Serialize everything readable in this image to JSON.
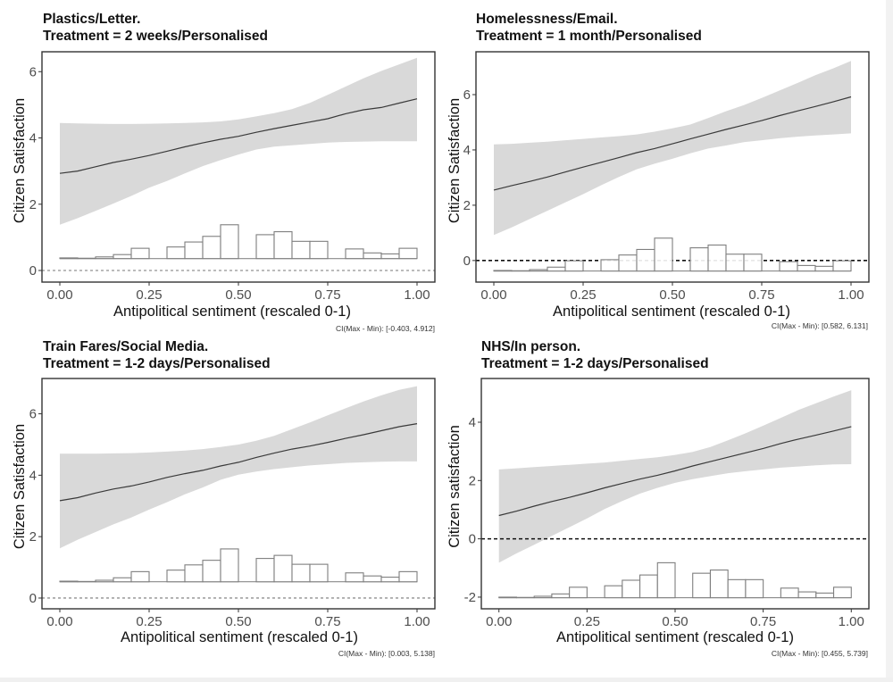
{
  "chart_data": [
    {
      "type": "line",
      "title": "Plastics/Letter.",
      "subtitle": "Treatment = 2 weeks/Personalised",
      "xlabel": "Antipolitical sentiment (rescaled 0-1)",
      "ylabel": "Citizen Satisfaction",
      "xlim": [
        -0.05,
        1.05
      ],
      "ylim": [
        -0.35,
        6.6
      ],
      "xticks": [
        "0.00",
        "0.25",
        "0.50",
        "0.75",
        "1.00"
      ],
      "xtick_values": [
        0,
        0.25,
        0.5,
        0.75,
        1
      ],
      "yticks": [
        "0",
        "2",
        "4",
        "6"
      ],
      "ytick_values": [
        0,
        2,
        4,
        6
      ],
      "reference_line": {
        "y": 0,
        "style": "dashed",
        "weight": "light"
      },
      "grid": false,
      "annotation": "CI(Max - Min): [-0.403, 4.912]",
      "series": [
        {
          "name": "marginal effect",
          "x": [
            0,
            0.05,
            0.1,
            0.15,
            0.2,
            0.25,
            0.3,
            0.35,
            0.4,
            0.45,
            0.5,
            0.55,
            0.6,
            0.65,
            0.7,
            0.75,
            0.8,
            0.85,
            0.9,
            0.95,
            1.0
          ],
          "y": [
            2.93,
            3.0,
            3.13,
            3.26,
            3.36,
            3.47,
            3.6,
            3.73,
            3.85,
            3.96,
            4.05,
            4.17,
            4.28,
            4.38,
            4.48,
            4.58,
            4.73,
            4.85,
            4.92,
            5.05,
            5.18
          ]
        },
        {
          "name": "95% CI upper",
          "x": [
            0,
            0.05,
            0.1,
            0.15,
            0.2,
            0.25,
            0.3,
            0.35,
            0.4,
            0.45,
            0.5,
            0.55,
            0.6,
            0.65,
            0.7,
            0.75,
            0.8,
            0.85,
            0.9,
            0.95,
            1.0
          ],
          "y": [
            4.45,
            4.44,
            4.43,
            4.42,
            4.42,
            4.43,
            4.44,
            4.45,
            4.47,
            4.5,
            4.56,
            4.65,
            4.75,
            4.87,
            5.06,
            5.3,
            5.55,
            5.8,
            6.02,
            6.22,
            6.42
          ]
        },
        {
          "name": "95% CI lower",
          "x": [
            0,
            0.05,
            0.1,
            0.15,
            0.2,
            0.25,
            0.3,
            0.35,
            0.4,
            0.45,
            0.5,
            0.55,
            0.6,
            0.65,
            0.7,
            0.75,
            0.8,
            0.85,
            0.9,
            0.95,
            1.0
          ],
          "y": [
            1.38,
            1.58,
            1.8,
            2.02,
            2.25,
            2.5,
            2.7,
            2.93,
            3.15,
            3.33,
            3.5,
            3.65,
            3.74,
            3.78,
            3.82,
            3.86,
            3.88,
            3.89,
            3.9,
            3.9,
            3.9
          ]
        }
      ],
      "histogram": {
        "bin_width": 0.05,
        "baseline": 0.36,
        "heights": [
          0.02,
          0.01,
          0.05,
          0.12,
          0.31,
          0,
          0.35,
          0.5,
          0.67,
          1.02,
          0,
          0.72,
          0.81,
          0.52,
          0.52,
          0,
          0.29,
          0.17,
          0.14,
          0.31
        ]
      }
    },
    {
      "type": "line",
      "title": "Homelessness/Email.",
      "subtitle": "Treatment = 1 month/Personalised",
      "xlabel": "Antipolitical sentiment (rescaled 0-1)",
      "ylabel": "Citizen Satisfaction",
      "xlim": [
        -0.05,
        1.05
      ],
      "ylim": [
        -0.78,
        7.55
      ],
      "xticks": [
        "0.00",
        "0.25",
        "0.50",
        "0.75",
        "1.00"
      ],
      "xtick_values": [
        0,
        0.25,
        0.5,
        0.75,
        1
      ],
      "yticks": [
        "0",
        "2",
        "4",
        "6"
      ],
      "ytick_values": [
        0,
        2,
        4,
        6
      ],
      "reference_line": {
        "y": 0,
        "style": "dashed",
        "weight": "bold"
      },
      "grid": false,
      "annotation": "CI(Max - Min): [0.582, 6.131]",
      "series": [
        {
          "name": "marginal effect",
          "x": [
            0,
            0.05,
            0.1,
            0.15,
            0.2,
            0.25,
            0.3,
            0.35,
            0.4,
            0.45,
            0.5,
            0.55,
            0.6,
            0.65,
            0.7,
            0.75,
            0.8,
            0.85,
            0.9,
            0.95,
            1.0
          ],
          "y": [
            2.55,
            2.71,
            2.86,
            3.02,
            3.2,
            3.38,
            3.55,
            3.72,
            3.9,
            4.05,
            4.22,
            4.4,
            4.57,
            4.74,
            4.9,
            5.06,
            5.24,
            5.41,
            5.57,
            5.74,
            5.92
          ]
        },
        {
          "name": "95% CI upper",
          "x": [
            0,
            0.05,
            0.1,
            0.15,
            0.2,
            0.25,
            0.3,
            0.35,
            0.4,
            0.45,
            0.5,
            0.55,
            0.6,
            0.65,
            0.7,
            0.75,
            0.8,
            0.85,
            0.9,
            0.95,
            1.0
          ],
          "y": [
            4.2,
            4.22,
            4.26,
            4.3,
            4.35,
            4.4,
            4.45,
            4.5,
            4.56,
            4.66,
            4.78,
            4.92,
            5.15,
            5.4,
            5.62,
            5.88,
            6.15,
            6.42,
            6.7,
            6.95,
            7.22
          ]
        },
        {
          "name": "95% CI lower",
          "x": [
            0,
            0.05,
            0.1,
            0.15,
            0.2,
            0.25,
            0.3,
            0.35,
            0.4,
            0.45,
            0.5,
            0.55,
            0.6,
            0.65,
            0.7,
            0.75,
            0.8,
            0.85,
            0.9,
            0.95,
            1.0
          ],
          "y": [
            0.92,
            1.2,
            1.5,
            1.8,
            2.1,
            2.4,
            2.72,
            3.02,
            3.3,
            3.5,
            3.68,
            3.88,
            4.05,
            4.16,
            4.28,
            4.35,
            4.42,
            4.48,
            4.52,
            4.56,
            4.6
          ]
        }
      ],
      "histogram": {
        "bin_width": 0.05,
        "baseline": -0.38,
        "heights": [
          0.02,
          0.01,
          0.05,
          0.14,
          0.37,
          0,
          0.41,
          0.58,
          0.78,
          1.19,
          0,
          0.84,
          0.94,
          0.61,
          0.61,
          0,
          0.34,
          0.2,
          0.17,
          0.37
        ]
      }
    },
    {
      "type": "line",
      "title": "Train Fares/Social Media.",
      "subtitle": "Treatment = 1-2 days/Personalised",
      "xlabel": "Antipolitical sentiment (rescaled 0-1)",
      "ylabel": "Citizen Satisfaction",
      "xlim": [
        -0.05,
        1.05
      ],
      "ylim": [
        -0.35,
        7.15
      ],
      "xticks": [
        "0.00",
        "0.25",
        "0.50",
        "0.75",
        "1.00"
      ],
      "xtick_values": [
        0,
        0.25,
        0.5,
        0.75,
        1
      ],
      "yticks": [
        "0",
        "2",
        "4",
        "6"
      ],
      "ytick_values": [
        0,
        2,
        4,
        6
      ],
      "reference_line": {
        "y": 0,
        "style": "dashed",
        "weight": "light"
      },
      "grid": false,
      "annotation": "CI(Max - Min): [0.003, 5.138]",
      "series": [
        {
          "name": "marginal effect",
          "x": [
            0,
            0.05,
            0.1,
            0.15,
            0.2,
            0.25,
            0.3,
            0.35,
            0.4,
            0.45,
            0.5,
            0.55,
            0.6,
            0.65,
            0.7,
            0.75,
            0.8,
            0.85,
            0.9,
            0.95,
            1.0
          ],
          "y": [
            3.17,
            3.27,
            3.42,
            3.55,
            3.65,
            3.78,
            3.93,
            4.05,
            4.16,
            4.3,
            4.42,
            4.58,
            4.72,
            4.85,
            4.95,
            5.07,
            5.2,
            5.32,
            5.45,
            5.58,
            5.68
          ]
        },
        {
          "name": "95% CI upper",
          "x": [
            0,
            0.05,
            0.1,
            0.15,
            0.2,
            0.25,
            0.3,
            0.35,
            0.4,
            0.45,
            0.5,
            0.55,
            0.6,
            0.65,
            0.7,
            0.75,
            0.8,
            0.85,
            0.9,
            0.95,
            1.0
          ],
          "y": [
            4.7,
            4.7,
            4.7,
            4.71,
            4.72,
            4.74,
            4.77,
            4.8,
            4.85,
            4.92,
            5.0,
            5.12,
            5.28,
            5.5,
            5.72,
            5.95,
            6.18,
            6.4,
            6.6,
            6.78,
            6.9
          ]
        },
        {
          "name": "95% CI lower",
          "x": [
            0,
            0.05,
            0.1,
            0.15,
            0.2,
            0.25,
            0.3,
            0.35,
            0.4,
            0.45,
            0.5,
            0.55,
            0.6,
            0.65,
            0.7,
            0.75,
            0.8,
            0.85,
            0.9,
            0.95,
            1.0
          ],
          "y": [
            1.62,
            1.9,
            2.15,
            2.4,
            2.62,
            2.88,
            3.12,
            3.38,
            3.6,
            3.85,
            4.02,
            4.12,
            4.2,
            4.26,
            4.32,
            4.36,
            4.4,
            4.42,
            4.44,
            4.45,
            4.45
          ]
        }
      ],
      "histogram": {
        "bin_width": 0.05,
        "baseline": 0.53,
        "heights": [
          0.02,
          0.01,
          0.05,
          0.13,
          0.33,
          0,
          0.38,
          0.55,
          0.7,
          1.07,
          0,
          0.76,
          0.86,
          0.57,
          0.57,
          0,
          0.29,
          0.19,
          0.15,
          0.33
        ]
      }
    },
    {
      "type": "line",
      "title": "NHS/In person.",
      "subtitle": "Treatment = 1-2 days/Personalised",
      "xlabel": "Antipolitical sentiment (rescaled 0-1)",
      "ylabel": "Citizen satisfaction",
      "xlim": [
        -0.05,
        1.05
      ],
      "ylim": [
        -2.4,
        5.5
      ],
      "xticks": [
        "0.00",
        "0.25",
        "0.50",
        "0.75",
        "1.00"
      ],
      "xtick_values": [
        0,
        0.25,
        0.5,
        0.75,
        1
      ],
      "yticks": [
        "-2",
        "0",
        "2",
        "4"
      ],
      "ytick_values": [
        -2,
        0,
        2,
        4
      ],
      "reference_line": {
        "y": 0,
        "style": "dashed",
        "weight": "bold"
      },
      "grid": false,
      "annotation": "CI(Max - Min): [0.455, 5.739]",
      "series": [
        {
          "name": "marginal effect",
          "x": [
            0,
            0.05,
            0.1,
            0.15,
            0.2,
            0.25,
            0.3,
            0.35,
            0.4,
            0.45,
            0.5,
            0.55,
            0.6,
            0.65,
            0.7,
            0.75,
            0.8,
            0.85,
            0.9,
            0.95,
            1.0
          ],
          "y": [
            0.8,
            0.95,
            1.12,
            1.28,
            1.42,
            1.58,
            1.75,
            1.9,
            2.05,
            2.18,
            2.33,
            2.5,
            2.65,
            2.8,
            2.95,
            3.1,
            3.27,
            3.42,
            3.56,
            3.7,
            3.85
          ]
        },
        {
          "name": "95% CI upper",
          "x": [
            0,
            0.05,
            0.1,
            0.15,
            0.2,
            0.25,
            0.3,
            0.35,
            0.4,
            0.45,
            0.5,
            0.55,
            0.6,
            0.65,
            0.7,
            0.75,
            0.8,
            0.85,
            0.9,
            0.95,
            1.0
          ],
          "y": [
            2.38,
            2.42,
            2.46,
            2.5,
            2.54,
            2.58,
            2.62,
            2.68,
            2.74,
            2.8,
            2.88,
            2.98,
            3.15,
            3.38,
            3.62,
            3.88,
            4.15,
            4.42,
            4.65,
            4.88,
            5.1
          ]
        },
        {
          "name": "95% CI lower",
          "x": [
            0,
            0.05,
            0.1,
            0.15,
            0.2,
            0.25,
            0.3,
            0.35,
            0.4,
            0.45,
            0.5,
            0.55,
            0.6,
            0.65,
            0.7,
            0.75,
            0.8,
            0.85,
            0.9,
            0.95,
            1.0
          ],
          "y": [
            -0.82,
            -0.5,
            -0.2,
            0.1,
            0.4,
            0.7,
            1.02,
            1.3,
            1.55,
            1.75,
            1.92,
            2.05,
            2.15,
            2.25,
            2.32,
            2.38,
            2.44,
            2.48,
            2.52,
            2.55,
            2.56
          ]
        }
      ],
      "histogram": {
        "bin_width": 0.05,
        "baseline": -2.02,
        "heights": [
          0.02,
          0.01,
          0.05,
          0.13,
          0.36,
          0,
          0.41,
          0.6,
          0.78,
          1.2,
          0,
          0.84,
          0.95,
          0.62,
          0.62,
          0,
          0.33,
          0.2,
          0.16,
          0.36
        ]
      }
    }
  ]
}
